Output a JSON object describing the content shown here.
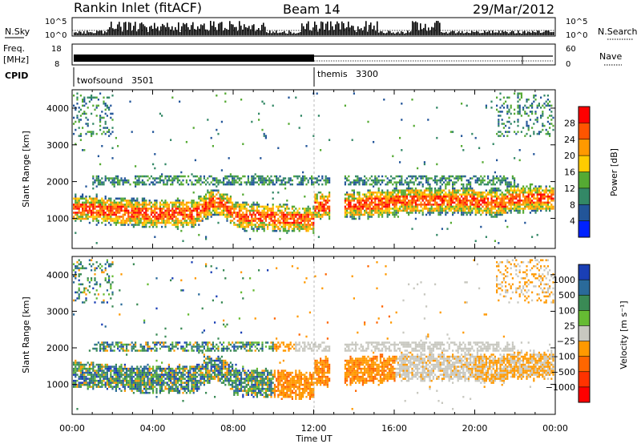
{
  "header": {
    "station": "Rankin Inlet (fitACF)",
    "beam": "Beam 14",
    "date": "29/Mar/2012"
  },
  "top_panels": {
    "nsky_label": "N.Sky",
    "nsearch_label": "N.Search",
    "nsky_ticks": [
      "10^5",
      "10^0"
    ],
    "nsearch_ticks": [
      "10^5",
      "10^0"
    ],
    "freq_label_1": "Freq.",
    "freq_label_2": "[MHz]",
    "freq_ticks": [
      "18",
      "8"
    ],
    "nave_label": "Nave",
    "nave_ticks": [
      "60",
      "0"
    ],
    "cpid_label": "CPID",
    "cpid_entries": [
      {
        "name": "twofsound",
        "id": "3501",
        "start_hour": 0
      },
      {
        "name": "themis",
        "id": "3300",
        "start_hour": 12.0
      }
    ]
  },
  "chart_data": [
    {
      "type": "heatmap",
      "name": "power",
      "xlabel": "",
      "ylabel": "Slant Range [km]",
      "x_range_hours": [
        0,
        24
      ],
      "ylim": [
        180,
        4500
      ],
      "y_ticks": [
        1000,
        2000,
        3000,
        4000
      ],
      "colorbar": {
        "label": "Power [dB]",
        "ticks": [
          "28",
          "24",
          "20",
          "16",
          "12",
          "8",
          "4"
        ],
        "colors": [
          "#ff0000",
          "#ff5500",
          "#ff9900",
          "#ffcc00",
          "#55aa33",
          "#338866",
          "#225599",
          "#0022ff"
        ]
      }
    },
    {
      "type": "heatmap",
      "name": "velocity",
      "xlabel": "Time UT",
      "ylabel": "Slant Range [km]",
      "x_range_hours": [
        0,
        24
      ],
      "ylim": [
        180,
        4500
      ],
      "y_ticks": [
        1000,
        2000,
        3000,
        4000
      ],
      "x_ticks": [
        "00:00",
        "04:00",
        "08:00",
        "12:00",
        "16:00",
        "20:00",
        "00:00"
      ],
      "colorbar": {
        "label": "Velocity [m s⁻¹]",
        "ticks": [
          "1000",
          "500",
          "100",
          "25",
          "−25",
          "−100",
          "−500",
          "−1000"
        ],
        "colors": [
          "#1a3fb5",
          "#2a6a9a",
          "#3a8a55",
          "#66bb33",
          "#c8c8c0",
          "#ff9900",
          "#ff6600",
          "#ff3300",
          "#ff0000"
        ]
      }
    }
  ]
}
